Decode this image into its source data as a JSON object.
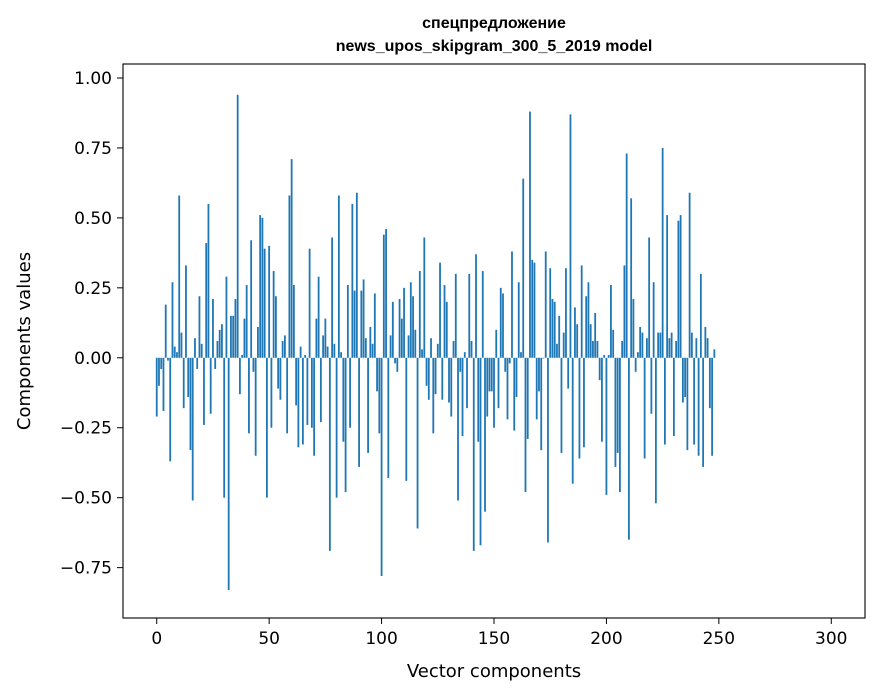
{
  "chart_data": {
    "type": "bar",
    "title_line1": "спецпредложение",
    "title_line2": "news_upos_skipgram_300_5_2019 model",
    "xlabel": "Vector components",
    "ylabel": "Components values",
    "xlim": [
      -15,
      315
    ],
    "ylim": [
      -0.93,
      1.05
    ],
    "xticks": [
      0,
      50,
      100,
      150,
      200,
      250,
      300
    ],
    "yticks": [
      -0.75,
      -0.5,
      -0.25,
      0.0,
      0.25,
      0.5,
      0.75,
      1.0
    ],
    "ytick_labels": [
      "−0.75",
      "−0.50",
      "−0.25",
      "0.00",
      "0.25",
      "0.50",
      "0.75",
      "1.00"
    ],
    "xtick_labels": [
      "0",
      "50",
      "100",
      "150",
      "200",
      "250",
      "300"
    ],
    "bar_color": "#1f77b4",
    "grid": false,
    "values": [
      -0.21,
      -0.1,
      -0.04,
      -0.19,
      0.19,
      -0.01,
      -0.37,
      0.27,
      0.04,
      0.02,
      0.58,
      0.09,
      -0.18,
      0.33,
      -0.14,
      -0.33,
      -0.51,
      0.07,
      -0.04,
      0.22,
      0.05,
      -0.24,
      0.41,
      0.55,
      -0.2,
      0.21,
      -0.04,
      0.06,
      0.1,
      0.12,
      -0.5,
      0.29,
      -0.83,
      0.15,
      0.15,
      0.21,
      0.94,
      -0.13,
      0.01,
      0.14,
      0.26,
      -0.27,
      0.42,
      -0.05,
      -0.35,
      0.11,
      0.51,
      0.5,
      0.39,
      -0.5,
      0.4,
      -0.25,
      0.31,
      0.22,
      -0.11,
      -0.15,
      0.06,
      0.08,
      -0.27,
      0.58,
      0.71,
      0.26,
      -0.17,
      -0.32,
      0.04,
      -0.31,
      0.01,
      -0.24,
      0.39,
      -0.25,
      -0.35,
      0.14,
      0.29,
      -0.23,
      0.08,
      0.14,
      0.04,
      -0.69,
      0.43,
      0.05,
      -0.5,
      0.58,
      0.02,
      -0.3,
      -0.48,
      0.26,
      -0.25,
      0.55,
      0.24,
      0.59,
      -0.39,
      0.24,
      0.28,
      0.07,
      -0.34,
      0.11,
      0.05,
      0.23,
      -0.12,
      -0.27,
      -0.78,
      0.44,
      0.46,
      -0.43,
      0.08,
      0.2,
      -0.02,
      -0.05,
      0.21,
      0.14,
      0.25,
      -0.44,
      0.08,
      0.27,
      0.22,
      0.1,
      -0.61,
      0.31,
      0.03,
      0.43,
      -0.1,
      -0.15,
      0.07,
      -0.27,
      -0.13,
      0.05,
      0.34,
      -0.15,
      0.26,
      0.2,
      -0.16,
      -0.21,
      0.06,
      0.3,
      -0.51,
      -0.05,
      -0.28,
      0.02,
      -0.18,
      0.3,
      0.06,
      -0.69,
      0.37,
      -0.3,
      -0.67,
      0.31,
      -0.55,
      -0.21,
      -0.12,
      -0.12,
      -0.25,
      0.1,
      -0.18,
      0.25,
      0.23,
      -0.05,
      -0.22,
      -0.02,
      0.38,
      -0.26,
      -0.14,
      0.27,
      0.02,
      0.64,
      -0.48,
      -0.29,
      0.88,
      0.35,
      0.34,
      -0.22,
      -0.12,
      -0.33,
      0.0,
      0.38,
      -0.66,
      0.32,
      0.21,
      0.2,
      0.05,
      0.15,
      -0.34,
      0.09,
      0.32,
      -0.11,
      0.87,
      -0.45,
      0.18,
      0.12,
      -0.36,
      0.33,
      -0.32,
      0.22,
      0.27,
      0.12,
      0.06,
      0.16,
      0.06,
      -0.08,
      -0.3,
      0.01,
      -0.49,
      0.01,
      0.26,
      0.1,
      -0.39,
      -0.34,
      -0.48,
      0.06,
      0.33,
      0.73,
      -0.65,
      0.57,
      0.21,
      -0.05,
      0.02,
      0.11,
      0.09,
      -0.36,
      0.07,
      0.43,
      -0.2,
      0.27,
      -0.52,
      0.09,
      0.09,
      0.75,
      -0.31,
      0.51,
      0.07,
      0.09,
      -0.28,
      0.06,
      0.49,
      0.51,
      -0.16,
      -0.14,
      -0.33,
      0.59,
      0.09,
      -0.31,
      0.07,
      -0.35,
      0.3,
      -0.39,
      0.11,
      0.07,
      -0.18,
      -0.35,
      0.03
    ]
  }
}
